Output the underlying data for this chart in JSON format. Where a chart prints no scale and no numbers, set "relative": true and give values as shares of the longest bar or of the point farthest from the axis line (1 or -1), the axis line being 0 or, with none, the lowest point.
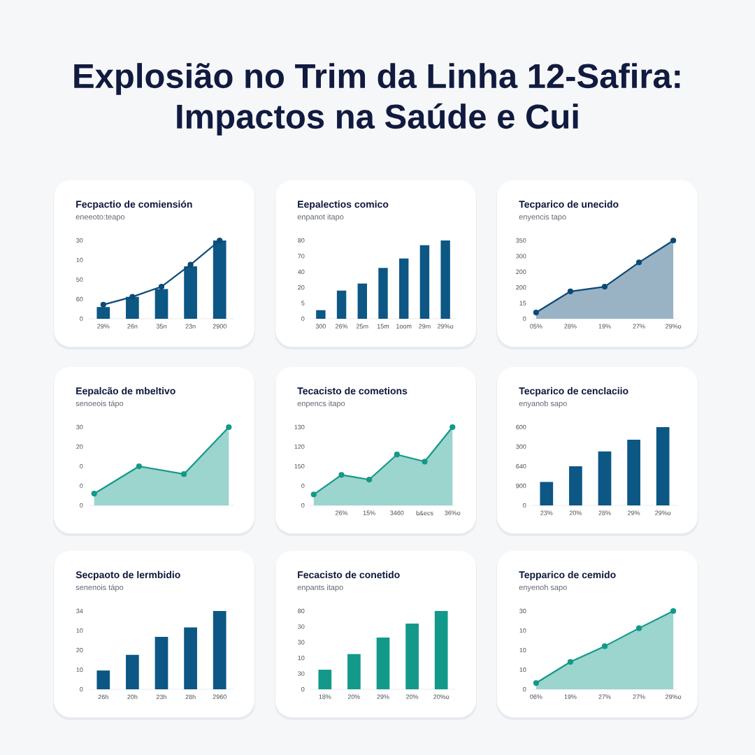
{
  "chart_data": [
    {
      "type": "other",
      "title": "Explosião no Trim da Linha 12-Safira: Impactos na Saúde e Cui"
    },
    {
      "type": "bar",
      "title": "Fecpactio de comiensión",
      "subtitle": "eneeoto:teapo",
      "relative": true,
      "categories": [
        "29%",
        "26n",
        "35n",
        "23n",
        "2900"
      ],
      "series": [
        {
          "values": [
            0.15,
            0.28,
            0.38,
            0.67,
            1.0
          ],
          "color": "#0c5784"
        },
        {
          "type": "line",
          "values": [
            0.18,
            0.28,
            0.41,
            0.69,
            1.0
          ],
          "color": "#0c4a76"
        }
      ],
      "annotations": [
        "0",
        "60",
        "50",
        "10",
        "30"
      ],
      "marker": "circle"
    },
    {
      "type": "bar",
      "title": "Eepalectios comico",
      "subtitle": "enpanot itapo",
      "relative": true,
      "categories": [
        "300",
        "26%",
        "25m",
        "15m",
        "1oom",
        "29m",
        "29%o"
      ],
      "series": [
        {
          "values": [
            0.11,
            0.36,
            0.45,
            0.65,
            0.77,
            0.94,
            1.0
          ],
          "color": "#0c5784"
        }
      ],
      "annotations": [
        "0",
        "5",
        "20",
        "40",
        "70",
        "80"
      ]
    },
    {
      "type": "area",
      "title": "Tecparico de unecido",
      "subtitle": "enyencis tapo",
      "relative": true,
      "categories": [
        "05%",
        "28%",
        "19%",
        "27%",
        "29%o"
      ],
      "series": [
        {
          "values": [
            0.08,
            0.35,
            0.41,
            0.72,
            1.0
          ],
          "color": "#0c4a76"
        }
      ],
      "annotations": [
        "0",
        "15",
        "200",
        "200",
        "300",
        "350"
      ],
      "marker": "circle"
    },
    {
      "type": "area",
      "title": "Eepalcão de mbeltivo",
      "subtitle": "senoeois tápo",
      "relative": true,
      "categories": [
        null,
        null,
        null,
        null
      ],
      "series": [
        {
          "values": [
            0.15,
            0.5,
            0.4,
            1.0
          ],
          "color": "#13998a"
        }
      ],
      "annotations": [
        "0",
        "0",
        "0",
        "20",
        "30"
      ],
      "marker": "circle"
    },
    {
      "type": "area",
      "title": "Tecacisto de cometions",
      "subtitle": "enpencs itapo",
      "relative": true,
      "categories": [
        null,
        "26%",
        "15%",
        "3460",
        "b&ecs",
        "36%o"
      ],
      "series": [
        {
          "values": [
            0.14,
            0.39,
            0.33,
            0.65,
            0.56,
            1.0
          ],
          "color": "#13998a"
        }
      ],
      "annotations": [
        "0",
        "0",
        "150",
        "120",
        "130"
      ],
      "marker": "circle"
    },
    {
      "type": "bar",
      "title": "Tecparico de cenclaciio",
      "subtitle": "enyanob sapo",
      "relative": true,
      "categories": [
        "23%",
        "20%",
        "28%",
        "29%",
        "29%o"
      ],
      "series": [
        {
          "values": [
            0.3,
            0.5,
            0.69,
            0.84,
            1.0
          ],
          "color": "#0c5784"
        }
      ],
      "annotations": [
        "0",
        "900",
        "640",
        "300",
        "600"
      ]
    },
    {
      "type": "bar",
      "title": "Secpaoto de lermbidio",
      "subtitle": "senenois tápo",
      "relative": true,
      "categories": [
        "26h",
        "20h",
        "23h",
        "28h",
        "2960"
      ],
      "series": [
        {
          "values": [
            0.24,
            0.44,
            0.67,
            0.79,
            1.0
          ],
          "color": "#0c5784"
        }
      ],
      "annotations": [
        "0",
        "10",
        "20",
        "10",
        "34"
      ]
    },
    {
      "type": "bar",
      "title": "Fecacisto de conetido",
      "subtitle": "enpants itapo",
      "relative": true,
      "categories": [
        "18%",
        "20%",
        "29%",
        "20%",
        "20%o"
      ],
      "series": [
        {
          "values": [
            0.25,
            0.45,
            0.66,
            0.84,
            1.0
          ],
          "color": "#13998a"
        }
      ],
      "annotations": [
        "0",
        "30",
        "10",
        "30",
        "30",
        "80"
      ]
    },
    {
      "type": "area",
      "title": "Tepparico de cemido",
      "subtitle": "enyenoh sapo",
      "relative": true,
      "categories": [
        "06%",
        "19%",
        "27%",
        "27%",
        "29%o"
      ],
      "series": [
        {
          "values": [
            0.08,
            0.35,
            0.55,
            0.78,
            1.0
          ],
          "color": "#13998a"
        }
      ],
      "annotations": [
        "0",
        "10",
        "10",
        "10",
        "30"
      ],
      "marker": "circle"
    }
  ]
}
